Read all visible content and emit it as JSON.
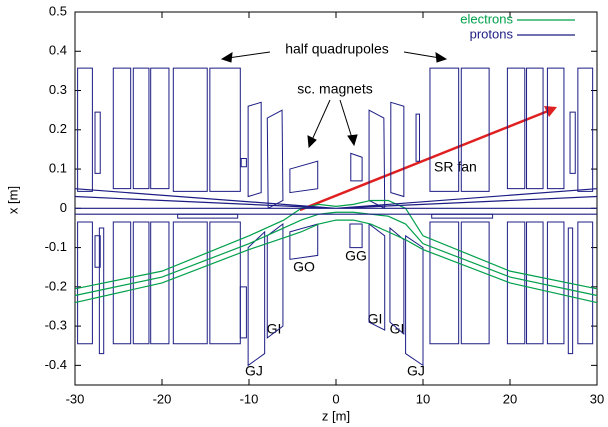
{
  "chart_data": {
    "type": "line",
    "x_label": "z [m]",
    "y_label": "x [m]",
    "xlim": [
      -30,
      30
    ],
    "ylim": [
      -0.45,
      0.5
    ],
    "xticks": [
      -30,
      -20,
      -10,
      0,
      10,
      20,
      30
    ],
    "yticks": [
      0.5,
      0.4,
      0.3,
      0.2,
      0.1,
      0,
      -0.1,
      -0.2,
      -0.3,
      -0.4
    ],
    "legend": "upper right",
    "series": [
      {
        "name": "electrons",
        "color": "#00a04a",
        "x": [
          -30,
          -20,
          -10,
          -6,
          -4,
          -2,
          0,
          2,
          4,
          6,
          8,
          10,
          20,
          30,
          null,
          -30,
          -20,
          -10,
          -6,
          -4,
          -2,
          0,
          2,
          4,
          6,
          8,
          10,
          20,
          30,
          null,
          -30,
          -20,
          -10,
          -6,
          -4,
          -2,
          0,
          2,
          4,
          6,
          8,
          10,
          20,
          30
        ],
        "values": [
          -0.205,
          -0.16,
          -0.07,
          -0.03,
          0.0,
          0.01,
          0.005,
          0.01,
          0.02,
          0.02,
          0.0,
          -0.07,
          -0.16,
          -0.205,
          null,
          -0.222,
          -0.175,
          -0.09,
          -0.05,
          -0.03,
          -0.015,
          -0.01,
          -0.01,
          -0.015,
          -0.02,
          -0.04,
          -0.09,
          -0.175,
          -0.222,
          null,
          -0.24,
          -0.19,
          -0.105,
          -0.075,
          -0.06,
          -0.04,
          -0.03,
          -0.03,
          -0.04,
          -0.06,
          -0.08,
          -0.105,
          -0.19,
          -0.24
        ]
      },
      {
        "name": "protons",
        "color": "#1c1c84",
        "x": [
          -30,
          0,
          30,
          null,
          -30,
          0,
          30,
          null,
          -30,
          30,
          null,
          -30,
          30
        ],
        "values": [
          0.05,
          0.0,
          0.05,
          null,
          0.03,
          0.0,
          0.03,
          null,
          0.0,
          0.0,
          null,
          -0.015,
          -0.015
        ]
      }
    ],
    "magnet_color": "#1c1c84",
    "magnets": [
      {
        "z": [
          -29.7,
          -28,
          -28,
          -29.7
        ],
        "x": [
          0.357,
          0.357,
          0.043,
          0.043
        ]
      },
      {
        "z": [
          -27.7,
          -27.1,
          -27.1,
          -27.7
        ],
        "x": [
          0.245,
          0.245,
          0.089,
          0.089
        ]
      },
      {
        "z": [
          -25.6,
          -23.6,
          -23.6,
          -25.6
        ],
        "x": [
          0.357,
          0.357,
          0.05,
          0.05
        ]
      },
      {
        "z": [
          -23.3,
          -21.5,
          -21.5,
          -23.3
        ],
        "x": [
          0.357,
          0.357,
          0.05,
          0.05
        ]
      },
      {
        "z": [
          -21.3,
          -19.2,
          -19.2,
          -21.3
        ],
        "x": [
          0.357,
          0.357,
          0.05,
          0.05
        ]
      },
      {
        "z": [
          -18.7,
          -14.8,
          -14.8,
          -18.7
        ],
        "x": [
          0.357,
          0.357,
          0.043,
          0.043
        ]
      },
      {
        "z": [
          -14.5,
          -11,
          -11,
          -14.5
        ],
        "x": [
          0.357,
          0.357,
          0.043,
          0.043
        ]
      },
      {
        "z": [
          -10.9,
          -10.3,
          -10.3,
          -10.9
        ],
        "x": [
          0.127,
          0.127,
          0.106,
          0.106
        ]
      },
      {
        "z": [
          -10.1,
          -8.6,
          -8.6,
          -10.1
        ],
        "x": [
          0.26,
          0.27,
          0.04,
          0.03
        ]
      },
      {
        "z": [
          -7.9,
          -6.2,
          -6.1,
          -7.8
        ],
        "x": [
          0.23,
          0.25,
          0.02,
          0.0
        ]
      },
      {
        "z": [
          -5.3,
          -2.1,
          -2.1,
          -5.3
        ],
        "x": [
          0.1,
          0.12,
          0.05,
          0.04
        ]
      },
      {
        "z": [
          1.7,
          3.0,
          3.0,
          1.7
        ],
        "x": [
          0.14,
          0.13,
          0.07,
          0.07
        ]
      },
      {
        "z": [
          3.8,
          5.5,
          5.6,
          3.8
        ],
        "x": [
          0.25,
          0.23,
          0.0,
          0.02
        ]
      },
      {
        "z": [
          6.3,
          7.8,
          7.8,
          6.3
        ],
        "x": [
          0.27,
          0.26,
          0.03,
          0.04
        ]
      },
      {
        "z": [
          9.2,
          9.6,
          9.6,
          9.2
        ],
        "x": [
          0.24,
          0.24,
          0.12,
          0.12
        ]
      },
      {
        "z": [
          10.8,
          14.1,
          14.1,
          10.8
        ],
        "x": [
          0.357,
          0.357,
          0.043,
          0.043
        ]
      },
      {
        "z": [
          14.4,
          17.6,
          17.6,
          14.4
        ],
        "x": [
          0.357,
          0.357,
          0.043,
          0.043
        ]
      },
      {
        "z": [
          19.7,
          21.7,
          21.7,
          19.7
        ],
        "x": [
          0.357,
          0.357,
          0.05,
          0.05
        ]
      },
      {
        "z": [
          21.9,
          23.8,
          23.8,
          21.9
        ],
        "x": [
          0.357,
          0.357,
          0.05,
          0.05
        ]
      },
      {
        "z": [
          24.3,
          26.2,
          26.2,
          24.3
        ],
        "x": [
          0.357,
          0.357,
          0.05,
          0.05
        ]
      },
      {
        "z": [
          26.9,
          27.5,
          27.5,
          26.9
        ],
        "x": [
          0.245,
          0.245,
          0.089,
          0.089
        ]
      },
      {
        "z": [
          27.8,
          29.5,
          29.5,
          27.8
        ],
        "x": [
          0.357,
          0.357,
          0.043,
          0.043
        ]
      },
      {
        "z": [
          -18.2,
          -11.3,
          -11.3,
          -18.2
        ],
        "x": [
          -0.015,
          -0.015,
          -0.025,
          -0.025
        ]
      },
      {
        "z": [
          11,
          18,
          18,
          11
        ],
        "x": [
          -0.015,
          -0.015,
          -0.025,
          -0.025
        ]
      },
      {
        "z": [
          -29.7,
          -28,
          -28,
          -29.7
        ],
        "x": [
          -0.035,
          -0.035,
          -0.345,
          -0.345
        ]
      },
      {
        "z": [
          -27.7,
          -27.1,
          -27.1,
          -27.7
        ],
        "x": [
          -0.07,
          -0.07,
          -0.15,
          -0.15
        ]
      },
      {
        "z": [
          -27.2,
          -26.7,
          -26.7,
          -27.2
        ],
        "x": [
          -0.05,
          -0.05,
          -0.37,
          -0.37
        ]
      },
      {
        "z": [
          -25.6,
          -23.6,
          -23.6,
          -25.6
        ],
        "x": [
          -0.035,
          -0.035,
          -0.345,
          -0.345
        ]
      },
      {
        "z": [
          -23.3,
          -21.5,
          -21.5,
          -23.3
        ],
        "x": [
          -0.035,
          -0.035,
          -0.345,
          -0.345
        ]
      },
      {
        "z": [
          -21.3,
          -19.2,
          -19.2,
          -21.3
        ],
        "x": [
          -0.035,
          -0.035,
          -0.345,
          -0.345
        ]
      },
      {
        "z": [
          -18.7,
          -14.8,
          -14.8,
          -18.7
        ],
        "x": [
          -0.035,
          -0.035,
          -0.345,
          -0.345
        ]
      },
      {
        "z": [
          -14.5,
          -11,
          -11,
          -14.5
        ],
        "x": [
          -0.035,
          -0.035,
          -0.345,
          -0.345
        ]
      },
      {
        "z": [
          -11,
          -10.3,
          -10.3,
          -11
        ],
        "x": [
          -0.2,
          -0.2,
          -0.33,
          -0.33
        ]
      },
      {
        "z": [
          -10.1,
          -8.2,
          -8.2,
          -10.1
        ],
        "x": [
          -0.1,
          -0.06,
          -0.37,
          -0.4
        ]
      },
      {
        "z": [
          -7.9,
          -6.1,
          -6.1,
          -7.9
        ],
        "x": [
          -0.07,
          -0.04,
          -0.3,
          -0.33
        ]
      },
      {
        "z": [
          -5.3,
          -2.1,
          -2.1,
          -5.3
        ],
        "x": [
          -0.06,
          -0.04,
          -0.12,
          -0.13
        ]
      },
      {
        "z": [
          1.6,
          3.0,
          3.0,
          1.6
        ],
        "x": [
          -0.04,
          -0.04,
          -0.1,
          -0.1
        ]
      },
      {
        "z": [
          3.8,
          5.6,
          5.6,
          3.8
        ],
        "x": [
          -0.04,
          -0.07,
          -0.31,
          -0.29
        ]
      },
      {
        "z": [
          6.2,
          7.8,
          7.8,
          6.2
        ],
        "x": [
          -0.05,
          -0.08,
          -0.32,
          -0.29
        ]
      },
      {
        "z": [
          8.0,
          10.0,
          10.0,
          8.0
        ],
        "x": [
          -0.07,
          -0.1,
          -0.4,
          -0.37
        ]
      },
      {
        "z": [
          10.8,
          14.1,
          14.1,
          10.8
        ],
        "x": [
          -0.035,
          -0.035,
          -0.345,
          -0.345
        ]
      },
      {
        "z": [
          14.4,
          17.6,
          17.6,
          14.4
        ],
        "x": [
          -0.035,
          -0.035,
          -0.345,
          -0.345
        ]
      },
      {
        "z": [
          19.7,
          21.7,
          21.7,
          19.7
        ],
        "x": [
          -0.035,
          -0.035,
          -0.345,
          -0.345
        ]
      },
      {
        "z": [
          21.9,
          23.8,
          23.8,
          21.9
        ],
        "x": [
          -0.035,
          -0.035,
          -0.345,
          -0.345
        ]
      },
      {
        "z": [
          24.3,
          26.2,
          26.2,
          24.3
        ],
        "x": [
          -0.035,
          -0.035,
          -0.345,
          -0.345
        ]
      },
      {
        "z": [
          26.7,
          27.2,
          27.2,
          26.7
        ],
        "x": [
          -0.05,
          -0.05,
          -0.37,
          -0.37
        ]
      },
      {
        "z": [
          27.8,
          29.5,
          29.5,
          27.8
        ],
        "x": [
          -0.035,
          -0.035,
          -0.345,
          -0.345
        ]
      }
    ],
    "annotations": [
      "half quadrupoles",
      "sc. magnets",
      "SR fan",
      "GO",
      "GG",
      "GI",
      "GI",
      "GI",
      "GJ",
      "GJ"
    ]
  }
}
